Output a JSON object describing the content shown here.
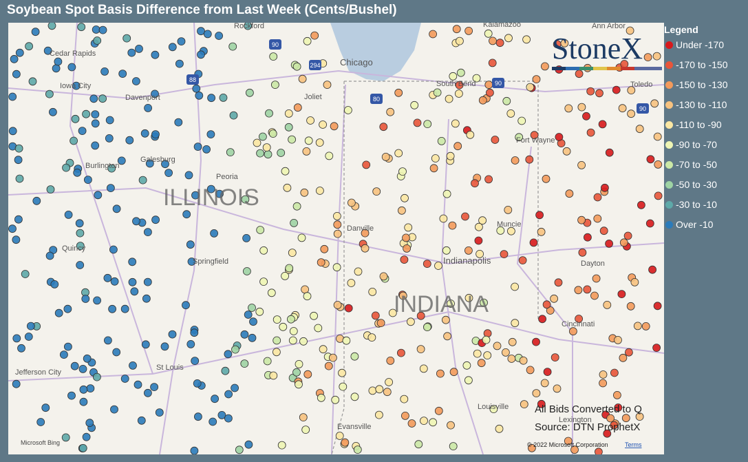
{
  "header": {
    "title": "Soybean Spot Basis Difference from Last Week (Cents/Bushel)"
  },
  "legend": {
    "title": "Legend",
    "items": [
      {
        "label": "Under -170",
        "color": "#d7191c"
      },
      {
        "label": "-170 to -150",
        "color": "#e8553a"
      },
      {
        "label": "-150 to -130",
        "color": "#f39a5b"
      },
      {
        "label": "-130 to -110",
        "color": "#f7c27f"
      },
      {
        "label": "-110 to -90",
        "color": "#fbe7a3"
      },
      {
        "label": "-90 to -70",
        "color": "#eef5b4"
      },
      {
        "label": "-70 to -50",
        "color": "#cbe8a6"
      },
      {
        "label": "-50 to -30",
        "color": "#9ed3a4"
      },
      {
        "label": "-30 to -10",
        "color": "#5ea9a9"
      },
      {
        "label": "Over -10",
        "color": "#2b7bba"
      }
    ]
  },
  "logo": "StoneX",
  "map": {
    "states": [
      "ILLINOIS",
      "INDIANA"
    ],
    "places": [
      "Cedar Rapids",
      "Iowa City",
      "Davenport",
      "Rockford",
      "Chicago",
      "Joliet",
      "South Bend",
      "Kalamazoo",
      "Ann Arbor",
      "Toledo",
      "Fort Wayne",
      "Galesburg",
      "Peoria",
      "Burlington",
      "Quincy",
      "Springfield",
      "Danville",
      "Muncie",
      "Indianapolis",
      "Dayton",
      "Cincinnati",
      "Jefferson City",
      "St Louis",
      "Louisville",
      "Evansville",
      "Lexington"
    ],
    "shields": [
      "90",
      "88",
      "294",
      "80",
      "90",
      "90"
    ]
  },
  "notes": [
    "All Bids Converted to Q",
    "Source: DTN ProphetX"
  ],
  "footer": {
    "bing": "Microsoft Bing",
    "copyright": "© 2022 Microsoft Corporation",
    "terms": "Terms"
  }
}
